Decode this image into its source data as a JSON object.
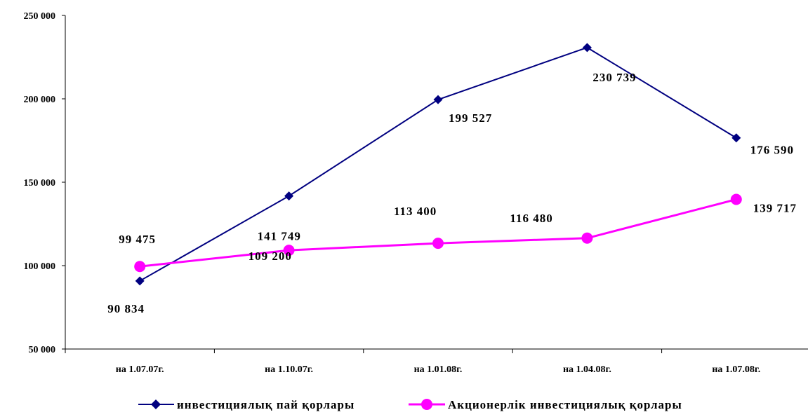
{
  "chart_data": {
    "type": "line",
    "categories": [
      "на 1.07.07г.",
      "на 1.10.07г.",
      "на 1.01.08г.",
      "на 1.04.08г.",
      "на 1.07.08г."
    ],
    "y_ticks": [
      "50 000",
      "100 000",
      "150 000",
      "200 000",
      "250 000"
    ],
    "ylim": [
      50000,
      250000
    ],
    "grid": false,
    "legend_position": "bottom",
    "series": [
      {
        "name": "инвестициялық пай қорлары",
        "color": "#000080",
        "marker": "diamond",
        "values": [
          90834,
          141749,
          199527,
          230739,
          176590
        ],
        "labels": [
          "90 834",
          "141 749",
          "199 527",
          "230 739",
          "176 590"
        ]
      },
      {
        "name": "Акционерлік инвестициялық қорлары",
        "color": "#ff00ff",
        "marker": "circle",
        "values": [
          99475,
          109200,
          113400,
          116480,
          139717
        ],
        "labels": [
          "99 475",
          "109 200",
          "113 400",
          "116 480",
          "139 717"
        ]
      }
    ]
  }
}
